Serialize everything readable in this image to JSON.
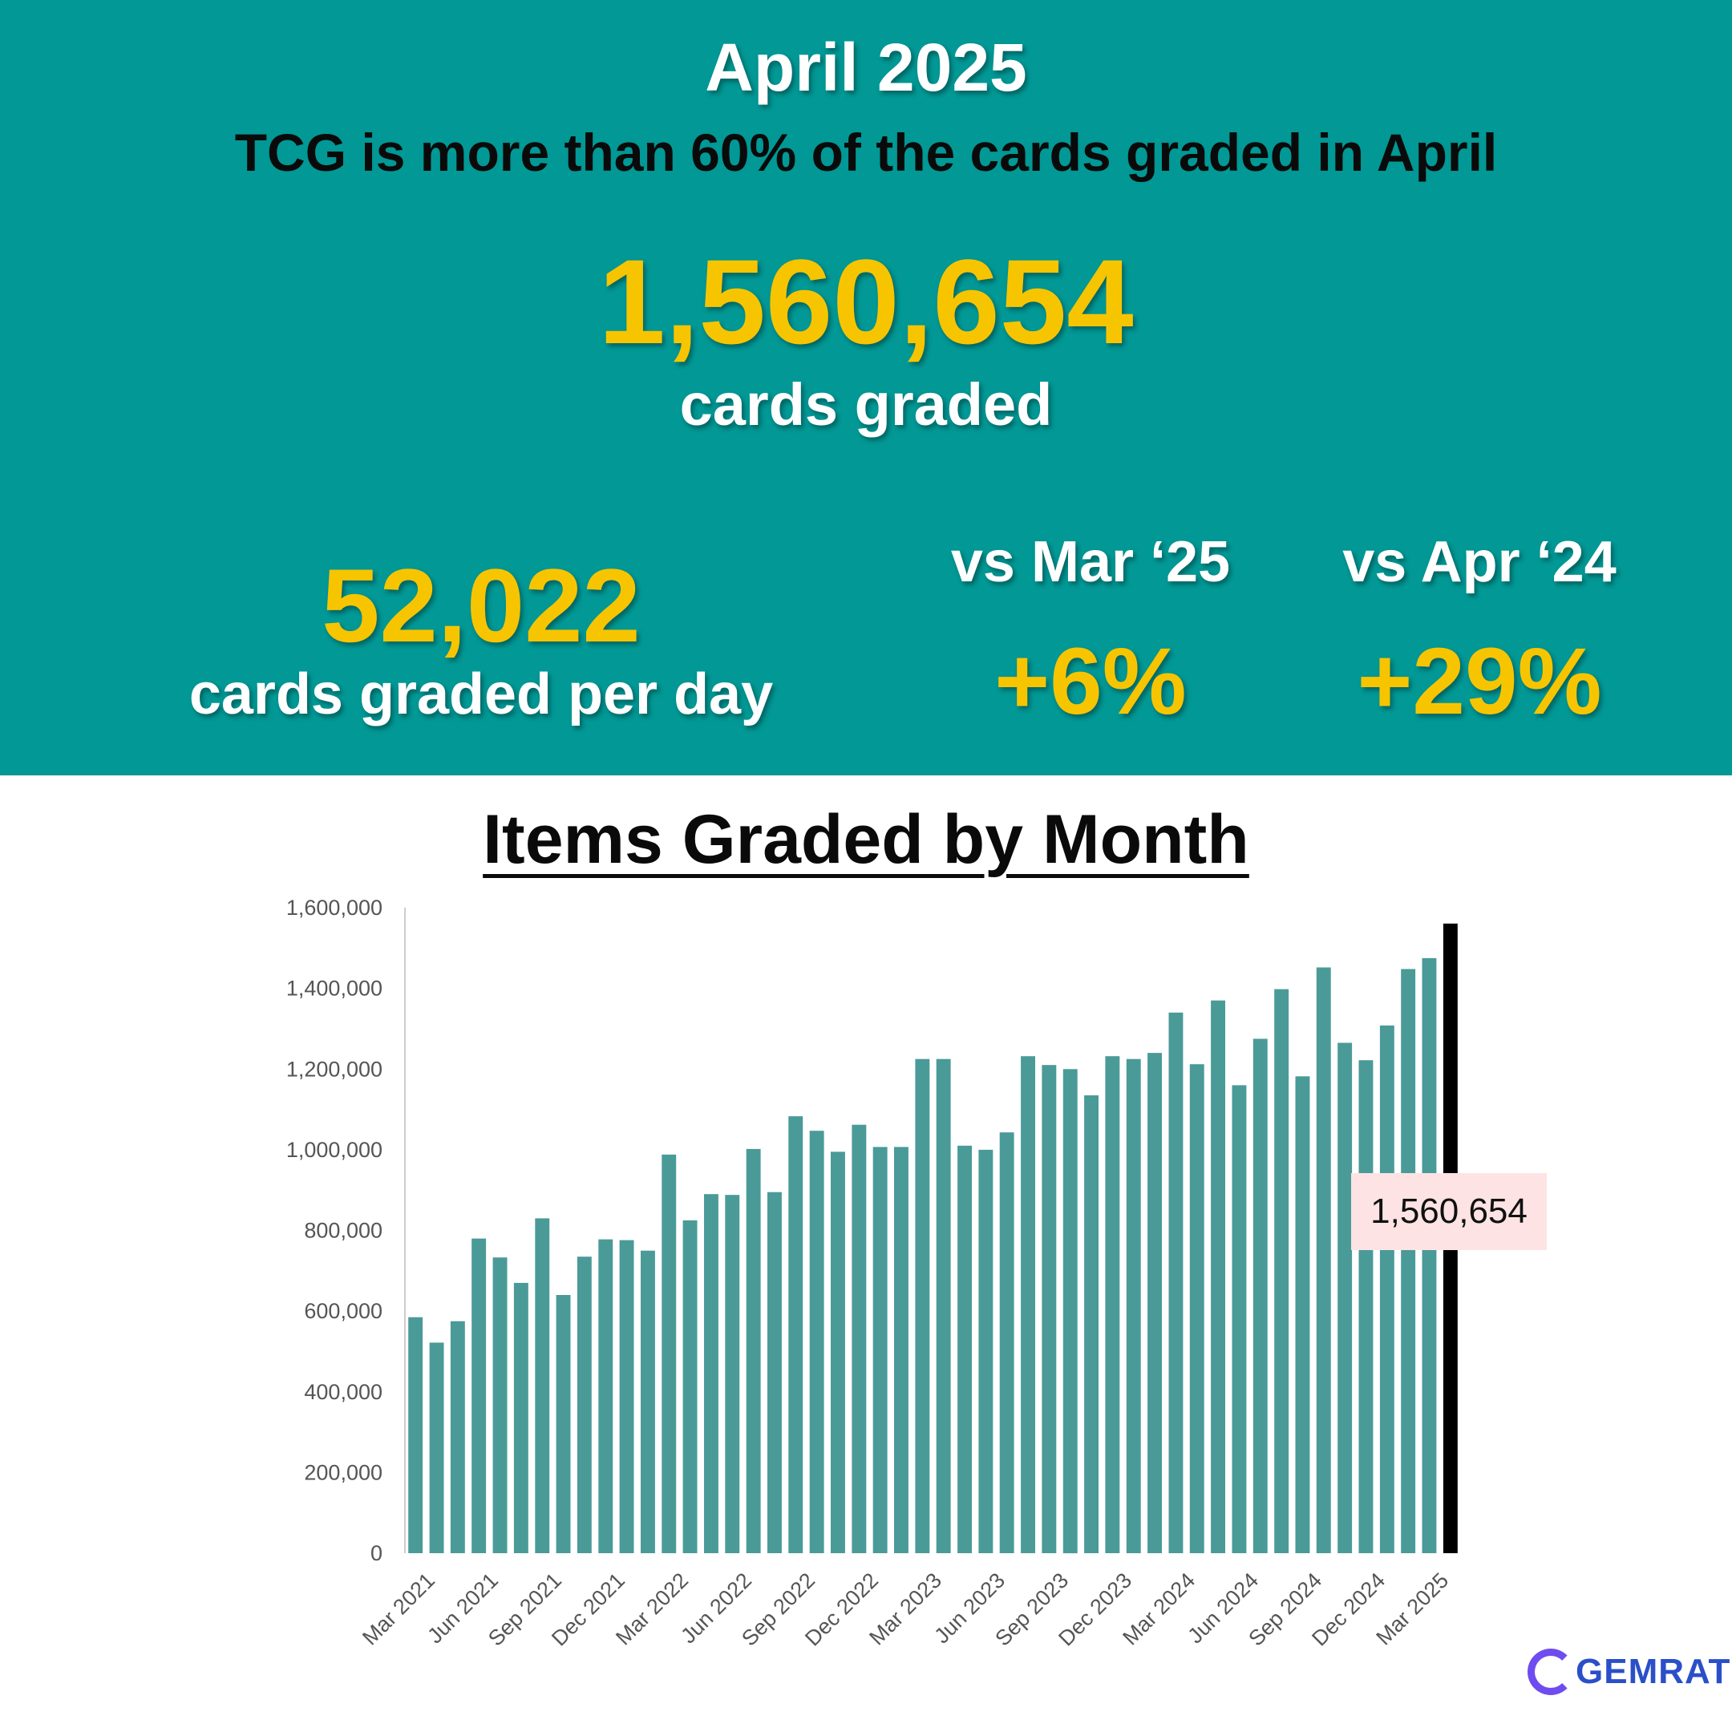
{
  "header": {
    "month_title": "April 2025",
    "headline": "TCG is more than 60% of the cards graded in April",
    "total_value": "1,560,654",
    "total_label": "cards graded",
    "per_day_value": "52,022",
    "per_day_label": "cards graded per day",
    "mom_label": "vs Mar ‘25",
    "mom_value": "+6%",
    "yoy_label": "vs Apr ‘24",
    "yoy_value": "+29%"
  },
  "colors": {
    "banner": "#019895",
    "gold": "#f7c500",
    "bar": "#4a9a98",
    "highlight_bar": "#000000",
    "callout_bg": "#fde3e3"
  },
  "logo": {
    "text": "GEMRATE",
    "icon": "gemrate-g-icon"
  },
  "chart_data": {
    "type": "bar",
    "title": "Items Graded by Month",
    "xlabel": "",
    "ylabel": "",
    "ylim": [
      0,
      1600000
    ],
    "yticks": [
      0,
      200000,
      400000,
      600000,
      800000,
      1000000,
      1200000,
      1400000,
      1600000
    ],
    "ytick_labels": [
      "0",
      "200,000",
      "400,000",
      "600,000",
      "800,000",
      "1,000,000",
      "1,200,000",
      "1,400,000",
      "1,600,000"
    ],
    "xtick_labels": [
      "Mar 2021",
      "Jun 2021",
      "Sep 2021",
      "Dec 2021",
      "Mar 2022",
      "Jun 2022",
      "Sep 2022",
      "Dec 2022",
      "Mar 2023",
      "Jun 2023",
      "Sep 2023",
      "Dec 2023",
      "Mar 2024",
      "Jun 2024",
      "Sep 2024",
      "Dec 2024",
      "Mar 2025"
    ],
    "categories": [
      "Mar 2021",
      "Apr 2021",
      "May 2021",
      "Jun 2021",
      "Jul 2021",
      "Aug 2021",
      "Sep 2021",
      "Oct 2021",
      "Nov 2021",
      "Dec 2021",
      "Jan 2022",
      "Feb 2022",
      "Mar 2022",
      "Apr 2022",
      "May 2022",
      "Jun 2022",
      "Jul 2022",
      "Aug 2022",
      "Sep 2022",
      "Oct 2022",
      "Nov 2022",
      "Dec 2022",
      "Jan 2023",
      "Feb 2023",
      "Mar 2023",
      "Apr 2023",
      "May 2023",
      "Jun 2023",
      "Jul 2023",
      "Aug 2023",
      "Sep 2023",
      "Oct 2023",
      "Nov 2023",
      "Dec 2023",
      "Jan 2024",
      "Feb 2024",
      "Mar 2024",
      "Apr 2024",
      "May 2024",
      "Jun 2024",
      "Jul 2024",
      "Aug 2024",
      "Sep 2024",
      "Oct 2024",
      "Nov 2024",
      "Dec 2024",
      "Jan 2025",
      "Feb 2025",
      "Mar 2025",
      "Apr 2025"
    ],
    "values": [
      585000,
      522000,
      575000,
      780000,
      733000,
      670000,
      830000,
      640000,
      735000,
      778000,
      776000,
      750000,
      988000,
      825000,
      890000,
      888000,
      1002000,
      895000,
      1083000,
      1047000,
      995000,
      1062000,
      1007000,
      1007000,
      1225000,
      1225000,
      1010000,
      1000000,
      1043000,
      1232000,
      1210000,
      1200000,
      1135000,
      1232000,
      1225000,
      1240000,
      1340000,
      1212000,
      1370000,
      1160000,
      1275000,
      1398000,
      1182000,
      1452000,
      1265000,
      1222000,
      1308000,
      1448000,
      1475000,
      1560654
    ],
    "highlight": {
      "category": "Apr 2025",
      "value": 1560654,
      "label": "1,560,654"
    }
  }
}
